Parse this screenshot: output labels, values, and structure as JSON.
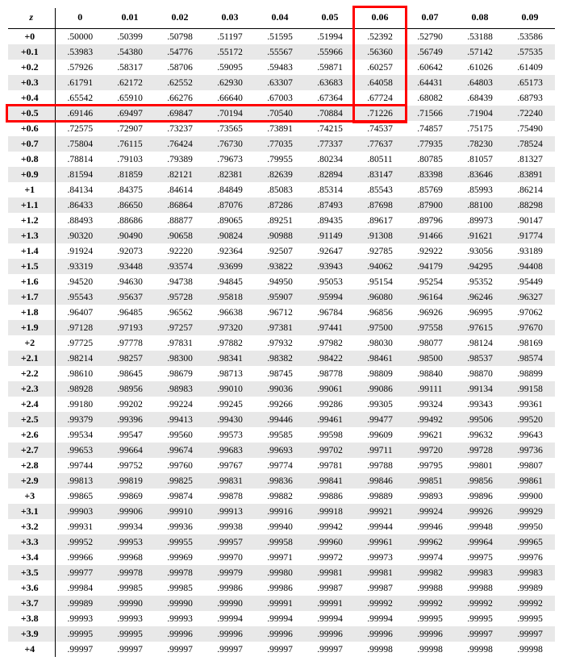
{
  "table": {
    "cornerLabel": "z",
    "colHeaders": [
      "0",
      "0.01",
      "0.02",
      "0.03",
      "0.04",
      "0.05",
      "0.06",
      "0.07",
      "0.08",
      "0.09"
    ],
    "rowHeaders": [
      "+0",
      "+0.1",
      "+0.2",
      "+0.3",
      "+0.4",
      "+0.5",
      "+0.6",
      "+0.7",
      "+0.8",
      "+0.9",
      "+1",
      "+1.1",
      "+1.2",
      "+1.3",
      "+1.4",
      "+1.5",
      "+1.6",
      "+1.7",
      "+1.8",
      "+1.9",
      "+2",
      "+2.1",
      "+2.2",
      "+2.3",
      "+2.4",
      "+2.5",
      "+2.6",
      "+2.7",
      "+2.8",
      "+2.9",
      "+3",
      "+3.1",
      "+3.2",
      "+3.3",
      "+3.4",
      "+3.5",
      "+3.6",
      "+3.7",
      "+3.8",
      "+3.9",
      "+4"
    ],
    "rows": [
      [
        ".50000",
        ".50399",
        ".50798",
        ".51197",
        ".51595",
        ".51994",
        ".52392",
        ".52790",
        ".53188",
        ".53586"
      ],
      [
        ".53983",
        ".54380",
        ".54776",
        ".55172",
        ".55567",
        ".55966",
        ".56360",
        ".56749",
        ".57142",
        ".57535"
      ],
      [
        ".57926",
        ".58317",
        ".58706",
        ".59095",
        ".59483",
        ".59871",
        ".60257",
        ".60642",
        ".61026",
        ".61409"
      ],
      [
        ".61791",
        ".62172",
        ".62552",
        ".62930",
        ".63307",
        ".63683",
        ".64058",
        ".64431",
        ".64803",
        ".65173"
      ],
      [
        ".65542",
        ".65910",
        ".66276",
        ".66640",
        ".67003",
        ".67364",
        ".67724",
        ".68082",
        ".68439",
        ".68793"
      ],
      [
        ".69146",
        ".69497",
        ".69847",
        ".70194",
        ".70540",
        ".70884",
        ".71226",
        ".71566",
        ".71904",
        ".72240"
      ],
      [
        ".72575",
        ".72907",
        ".73237",
        ".73565",
        ".73891",
        ".74215",
        ".74537",
        ".74857",
        ".75175",
        ".75490"
      ],
      [
        ".75804",
        ".76115",
        ".76424",
        ".76730",
        ".77035",
        ".77337",
        ".77637",
        ".77935",
        ".78230",
        ".78524"
      ],
      [
        ".78814",
        ".79103",
        ".79389",
        ".79673",
        ".79955",
        ".80234",
        ".80511",
        ".80785",
        ".81057",
        ".81327"
      ],
      [
        ".81594",
        ".81859",
        ".82121",
        ".82381",
        ".82639",
        ".82894",
        ".83147",
        ".83398",
        ".83646",
        ".83891"
      ],
      [
        ".84134",
        ".84375",
        ".84614",
        ".84849",
        ".85083",
        ".85314",
        ".85543",
        ".85769",
        ".85993",
        ".86214"
      ],
      [
        ".86433",
        ".86650",
        ".86864",
        ".87076",
        ".87286",
        ".87493",
        ".87698",
        ".87900",
        ".88100",
        ".88298"
      ],
      [
        ".88493",
        ".88686",
        ".88877",
        ".89065",
        ".89251",
        ".89435",
        ".89617",
        ".89796",
        ".89973",
        ".90147"
      ],
      [
        ".90320",
        ".90490",
        ".90658",
        ".90824",
        ".90988",
        ".91149",
        ".91308",
        ".91466",
        ".91621",
        ".91774"
      ],
      [
        ".91924",
        ".92073",
        ".92220",
        ".92364",
        ".92507",
        ".92647",
        ".92785",
        ".92922",
        ".93056",
        ".93189"
      ],
      [
        ".93319",
        ".93448",
        ".93574",
        ".93699",
        ".93822",
        ".93943",
        ".94062",
        ".94179",
        ".94295",
        ".94408"
      ],
      [
        ".94520",
        ".94630",
        ".94738",
        ".94845",
        ".94950",
        ".95053",
        ".95154",
        ".95254",
        ".95352",
        ".95449"
      ],
      [
        ".95543",
        ".95637",
        ".95728",
        ".95818",
        ".95907",
        ".95994",
        ".96080",
        ".96164",
        ".96246",
        ".96327"
      ],
      [
        ".96407",
        ".96485",
        ".96562",
        ".96638",
        ".96712",
        ".96784",
        ".96856",
        ".96926",
        ".96995",
        ".97062"
      ],
      [
        ".97128",
        ".97193",
        ".97257",
        ".97320",
        ".97381",
        ".97441",
        ".97500",
        ".97558",
        ".97615",
        ".97670"
      ],
      [
        ".97725",
        ".97778",
        ".97831",
        ".97882",
        ".97932",
        ".97982",
        ".98030",
        ".98077",
        ".98124",
        ".98169"
      ],
      [
        ".98214",
        ".98257",
        ".98300",
        ".98341",
        ".98382",
        ".98422",
        ".98461",
        ".98500",
        ".98537",
        ".98574"
      ],
      [
        ".98610",
        ".98645",
        ".98679",
        ".98713",
        ".98745",
        ".98778",
        ".98809",
        ".98840",
        ".98870",
        ".98899"
      ],
      [
        ".98928",
        ".98956",
        ".98983",
        ".99010",
        ".99036",
        ".99061",
        ".99086",
        ".99111",
        ".99134",
        ".99158"
      ],
      [
        ".99180",
        ".99202",
        ".99224",
        ".99245",
        ".99266",
        ".99286",
        ".99305",
        ".99324",
        ".99343",
        ".99361"
      ],
      [
        ".99379",
        ".99396",
        ".99413",
        ".99430",
        ".99446",
        ".99461",
        ".99477",
        ".99492",
        ".99506",
        ".99520"
      ],
      [
        ".99534",
        ".99547",
        ".99560",
        ".99573",
        ".99585",
        ".99598",
        ".99609",
        ".99621",
        ".99632",
        ".99643"
      ],
      [
        ".99653",
        ".99664",
        ".99674",
        ".99683",
        ".99693",
        ".99702",
        ".99711",
        ".99720",
        ".99728",
        ".99736"
      ],
      [
        ".99744",
        ".99752",
        ".99760",
        ".99767",
        ".99774",
        ".99781",
        ".99788",
        ".99795",
        ".99801",
        ".99807"
      ],
      [
        ".99813",
        ".99819",
        ".99825",
        ".99831",
        ".99836",
        ".99841",
        ".99846",
        ".99851",
        ".99856",
        ".99861"
      ],
      [
        ".99865",
        ".99869",
        ".99874",
        ".99878",
        ".99882",
        ".99886",
        ".99889",
        ".99893",
        ".99896",
        ".99900"
      ],
      [
        ".99903",
        ".99906",
        ".99910",
        ".99913",
        ".99916",
        ".99918",
        ".99921",
        ".99924",
        ".99926",
        ".99929"
      ],
      [
        ".99931",
        ".99934",
        ".99936",
        ".99938",
        ".99940",
        ".99942",
        ".99944",
        ".99946",
        ".99948",
        ".99950"
      ],
      [
        ".99952",
        ".99953",
        ".99955",
        ".99957",
        ".99958",
        ".99960",
        ".99961",
        ".99962",
        ".99964",
        ".99965"
      ],
      [
        ".99966",
        ".99968",
        ".99969",
        ".99970",
        ".99971",
        ".99972",
        ".99973",
        ".99974",
        ".99975",
        ".99976"
      ],
      [
        ".99977",
        ".99978",
        ".99978",
        ".99979",
        ".99980",
        ".99981",
        ".99981",
        ".99982",
        ".99983",
        ".99983"
      ],
      [
        ".99984",
        ".99985",
        ".99985",
        ".99986",
        ".99986",
        ".99987",
        ".99987",
        ".99988",
        ".99988",
        ".99989"
      ],
      [
        ".99989",
        ".99990",
        ".99990",
        ".99990",
        ".99991",
        ".99991",
        ".99992",
        ".99992",
        ".99992",
        ".99992"
      ],
      [
        ".99993",
        ".99993",
        ".99993",
        ".99994",
        ".99994",
        ".99994",
        ".99994",
        ".99995",
        ".99995",
        ".99995"
      ],
      [
        ".99995",
        ".99995",
        ".99996",
        ".99996",
        ".99996",
        ".99996",
        ".99996",
        ".99996",
        ".99997",
        ".99997"
      ],
      [
        ".99997",
        ".99997",
        ".99997",
        ".99997",
        ".99997",
        ".99997",
        ".99998",
        ".99998",
        ".99998",
        ".99998"
      ]
    ],
    "highlight": {
      "colIndex": 6,
      "rowIndex": 5,
      "borderColor": "#ff0000",
      "borderWidth": 3
    },
    "style": {
      "altRowColor": "#e8e8e8",
      "fontSize": 12,
      "cellFontSize": 11.5
    }
  }
}
